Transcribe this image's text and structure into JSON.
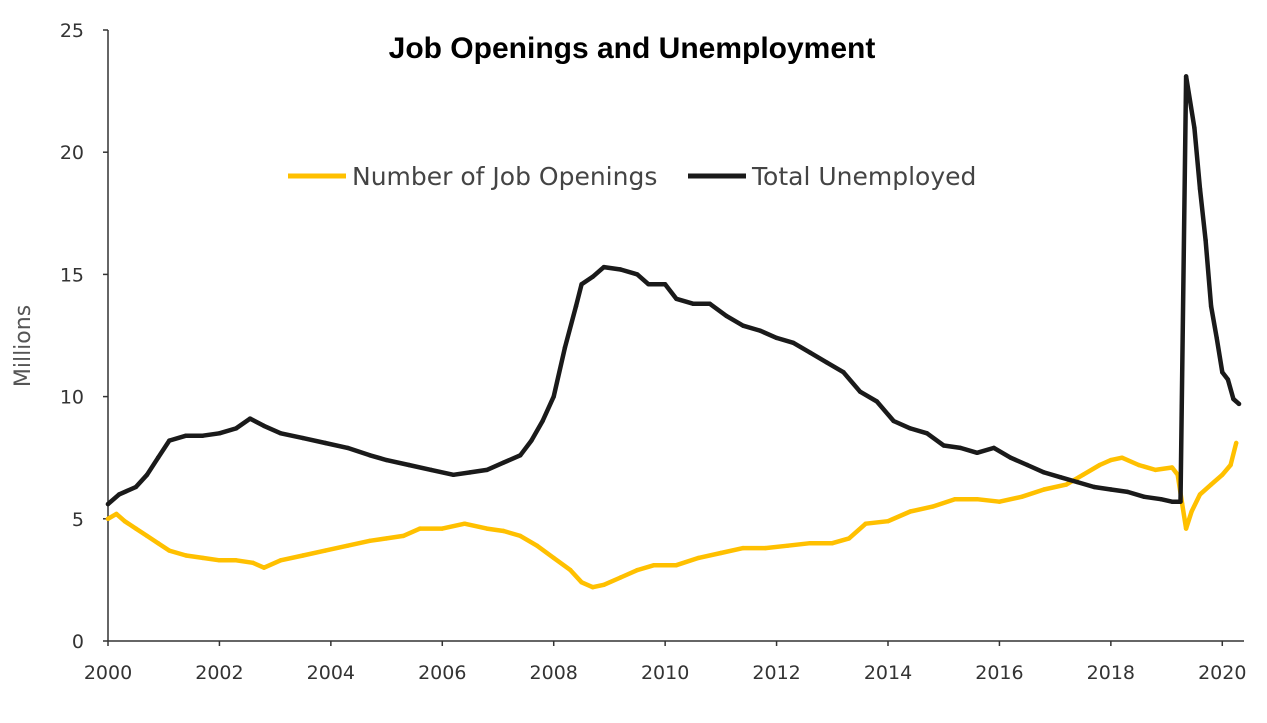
{
  "chart_data": {
    "type": "line",
    "title": "Job Openings and Unemployment",
    "xlabel": "",
    "ylabel": "Millions",
    "xlim": [
      2000,
      2020.3
    ],
    "ylim": [
      0,
      25
    ],
    "grid": false,
    "legend_position": "top-center",
    "x_ticks": [
      "2000",
      "2002",
      "2004",
      "2006",
      "2008",
      "2010",
      "2012",
      "2014",
      "2016",
      "2018",
      "2020"
    ],
    "y_ticks": [
      "0",
      "5",
      "10",
      "15",
      "20",
      "25"
    ],
    "series": [
      {
        "name": "Number of Job Openings",
        "color": "#FFC000",
        "points": [
          [
            2000.0,
            5.0
          ],
          [
            2000.15,
            5.2
          ],
          [
            2000.3,
            4.9
          ],
          [
            2000.5,
            4.6
          ],
          [
            2000.7,
            4.3
          ],
          [
            2000.9,
            4.0
          ],
          [
            2001.1,
            3.7
          ],
          [
            2001.4,
            3.5
          ],
          [
            2001.7,
            3.4
          ],
          [
            2002.0,
            3.3
          ],
          [
            2002.3,
            3.3
          ],
          [
            2002.6,
            3.2
          ],
          [
            2002.8,
            3.0
          ],
          [
            2003.1,
            3.3
          ],
          [
            2003.5,
            3.5
          ],
          [
            2003.9,
            3.7
          ],
          [
            2004.3,
            3.9
          ],
          [
            2004.7,
            4.1
          ],
          [
            2005.0,
            4.2
          ],
          [
            2005.3,
            4.3
          ],
          [
            2005.6,
            4.6
          ],
          [
            2006.0,
            4.6
          ],
          [
            2006.4,
            4.8
          ],
          [
            2006.8,
            4.6
          ],
          [
            2007.1,
            4.5
          ],
          [
            2007.4,
            4.3
          ],
          [
            2007.7,
            3.9
          ],
          [
            2008.0,
            3.4
          ],
          [
            2008.3,
            2.9
          ],
          [
            2008.5,
            2.4
          ],
          [
            2008.7,
            2.2
          ],
          [
            2008.9,
            2.3
          ],
          [
            2009.2,
            2.6
          ],
          [
            2009.5,
            2.9
          ],
          [
            2009.8,
            3.1
          ],
          [
            2010.2,
            3.1
          ],
          [
            2010.6,
            3.4
          ],
          [
            2011.0,
            3.6
          ],
          [
            2011.4,
            3.8
          ],
          [
            2011.8,
            3.8
          ],
          [
            2012.2,
            3.9
          ],
          [
            2012.6,
            4.0
          ],
          [
            2013.0,
            4.0
          ],
          [
            2013.3,
            4.2
          ],
          [
            2013.6,
            4.8
          ],
          [
            2014.0,
            4.9
          ],
          [
            2014.4,
            5.3
          ],
          [
            2014.8,
            5.5
          ],
          [
            2015.2,
            5.8
          ],
          [
            2015.6,
            5.8
          ],
          [
            2016.0,
            5.7
          ],
          [
            2016.4,
            5.9
          ],
          [
            2016.8,
            6.2
          ],
          [
            2017.2,
            6.4
          ],
          [
            2017.5,
            6.8
          ],
          [
            2017.8,
            7.2
          ],
          [
            2018.0,
            7.4
          ],
          [
            2018.2,
            7.5
          ],
          [
            2018.5,
            7.2
          ],
          [
            2018.8,
            7.0
          ],
          [
            2019.1,
            7.1
          ],
          [
            2019.2,
            6.8
          ],
          [
            2019.28,
            5.6
          ],
          [
            2019.35,
            4.6
          ],
          [
            2019.45,
            5.3
          ],
          [
            2019.6,
            6.0
          ],
          [
            2019.8,
            6.4
          ],
          [
            2020.0,
            6.8
          ],
          [
            2020.15,
            7.2
          ],
          [
            2020.25,
            8.1
          ]
        ]
      },
      {
        "name": "Total Unemployed",
        "color": "#1a1a1a",
        "points": [
          [
            2000.0,
            5.6
          ],
          [
            2000.2,
            6.0
          ],
          [
            2000.5,
            6.3
          ],
          [
            2000.7,
            6.8
          ],
          [
            2000.9,
            7.5
          ],
          [
            2001.1,
            8.2
          ],
          [
            2001.4,
            8.4
          ],
          [
            2001.7,
            8.4
          ],
          [
            2002.0,
            8.5
          ],
          [
            2002.3,
            8.7
          ],
          [
            2002.55,
            9.1
          ],
          [
            2002.8,
            8.8
          ],
          [
            2003.1,
            8.5
          ],
          [
            2003.5,
            8.3
          ],
          [
            2003.9,
            8.1
          ],
          [
            2004.3,
            7.9
          ],
          [
            2004.7,
            7.6
          ],
          [
            2005.0,
            7.4
          ],
          [
            2005.4,
            7.2
          ],
          [
            2005.8,
            7.0
          ],
          [
            2006.2,
            6.8
          ],
          [
            2006.5,
            6.9
          ],
          [
            2006.8,
            7.0
          ],
          [
            2007.1,
            7.3
          ],
          [
            2007.4,
            7.6
          ],
          [
            2007.6,
            8.2
          ],
          [
            2007.8,
            9.0
          ],
          [
            2008.0,
            10.0
          ],
          [
            2008.2,
            12.0
          ],
          [
            2008.4,
            13.7
          ],
          [
            2008.5,
            14.6
          ],
          [
            2008.7,
            14.9
          ],
          [
            2008.9,
            15.3
          ],
          [
            2009.2,
            15.2
          ],
          [
            2009.5,
            15.0
          ],
          [
            2009.7,
            14.6
          ],
          [
            2010.0,
            14.6
          ],
          [
            2010.2,
            14.0
          ],
          [
            2010.5,
            13.8
          ],
          [
            2010.8,
            13.8
          ],
          [
            2011.1,
            13.3
          ],
          [
            2011.4,
            12.9
          ],
          [
            2011.7,
            12.7
          ],
          [
            2012.0,
            12.4
          ],
          [
            2012.3,
            12.2
          ],
          [
            2012.6,
            11.8
          ],
          [
            2012.9,
            11.4
          ],
          [
            2013.2,
            11.0
          ],
          [
            2013.5,
            10.2
          ],
          [
            2013.8,
            9.8
          ],
          [
            2014.1,
            9.0
          ],
          [
            2014.4,
            8.7
          ],
          [
            2014.7,
            8.5
          ],
          [
            2015.0,
            8.0
          ],
          [
            2015.3,
            7.9
          ],
          [
            2015.6,
            7.7
          ],
          [
            2015.9,
            7.9
          ],
          [
            2016.2,
            7.5
          ],
          [
            2016.5,
            7.2
          ],
          [
            2016.8,
            6.9
          ],
          [
            2017.1,
            6.7
          ],
          [
            2017.4,
            6.5
          ],
          [
            2017.7,
            6.3
          ],
          [
            2018.0,
            6.2
          ],
          [
            2018.3,
            6.1
          ],
          [
            2018.6,
            5.9
          ],
          [
            2018.9,
            5.8
          ],
          [
            2019.1,
            5.7
          ],
          [
            2019.25,
            5.7
          ],
          [
            2019.35,
            23.1
          ],
          [
            2019.5,
            21.0
          ],
          [
            2019.6,
            18.5
          ],
          [
            2019.7,
            16.4
          ],
          [
            2019.8,
            13.7
          ],
          [
            2019.9,
            12.4
          ],
          [
            2020.0,
            11.0
          ],
          [
            2020.1,
            10.7
          ],
          [
            2020.2,
            9.9
          ],
          [
            2020.3,
            9.7
          ]
        ]
      }
    ]
  }
}
